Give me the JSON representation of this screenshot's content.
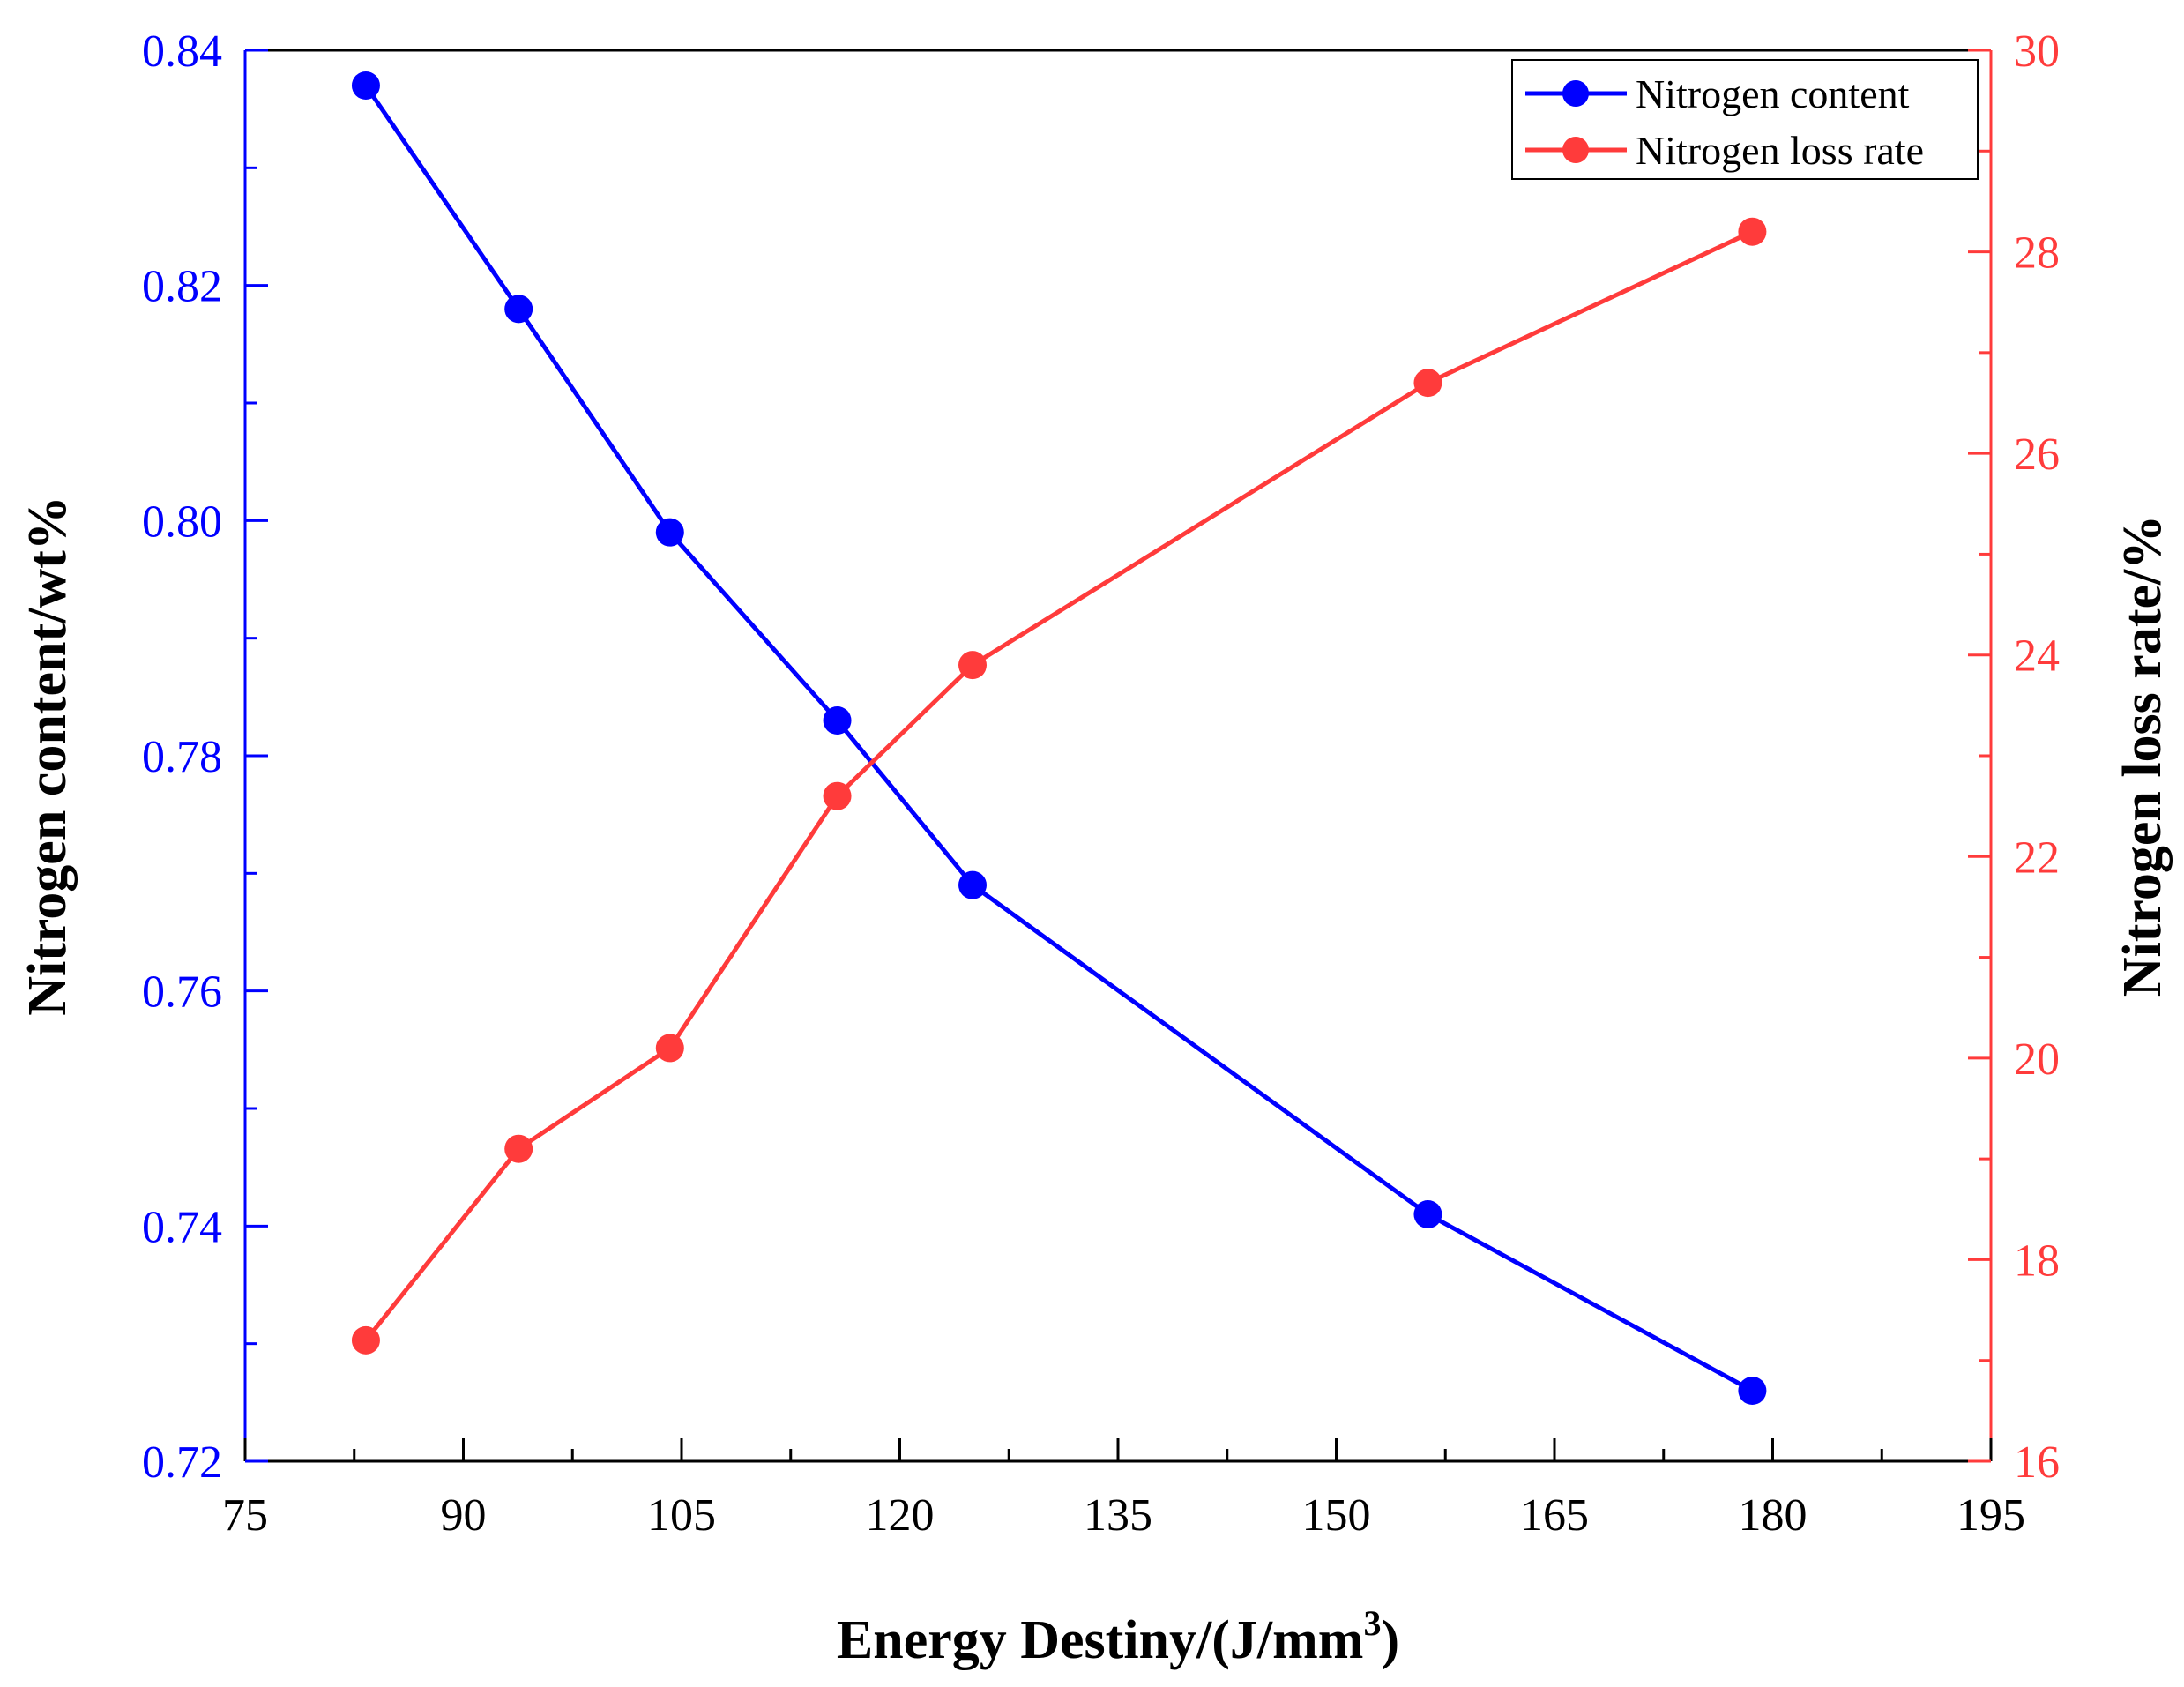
{
  "chart_data": {
    "type": "line",
    "title": "",
    "xlabel": "Energy Destiny/(J/mm",
    "xlabel_superscript": "3",
    "xlabel_suffix": ")",
    "xlim": [
      75,
      195
    ],
    "xticks": [
      "75",
      "90",
      "105",
      "120",
      "135",
      "150",
      "165",
      "180",
      "195"
    ],
    "x": [
      83.3,
      93.8,
      104.2,
      115.7,
      125,
      156.3,
      178.6
    ],
    "y_left": {
      "label": "Nitrogen content/wt%",
      "ylim": [
        0.72,
        0.84
      ],
      "ticks": [
        "0.72",
        "0.74",
        "0.76",
        "0.78",
        "0.80",
        "0.82",
        "0.84"
      ],
      "color": "#0000ff"
    },
    "y_right": {
      "label": "Nitrogen loss rate/%",
      "ylim": [
        16,
        30
      ],
      "ticks": [
        "16",
        "18",
        "20",
        "22",
        "24",
        "26",
        "28",
        "30"
      ],
      "color": "#ff3b3b"
    },
    "series": [
      {
        "name": "Nitrogen content",
        "axis": "left",
        "color": "#0000ff",
        "values": [
          0.837,
          0.818,
          0.799,
          0.783,
          0.769,
          0.741,
          0.726
        ]
      },
      {
        "name": "Nitrogen loss rate",
        "axis": "right",
        "color": "#ff3b3b",
        "values": [
          17.2,
          19.1,
          20.1,
          22.6,
          23.9,
          26.7,
          28.2
        ]
      }
    ],
    "legend": "top-right",
    "grid": false
  }
}
